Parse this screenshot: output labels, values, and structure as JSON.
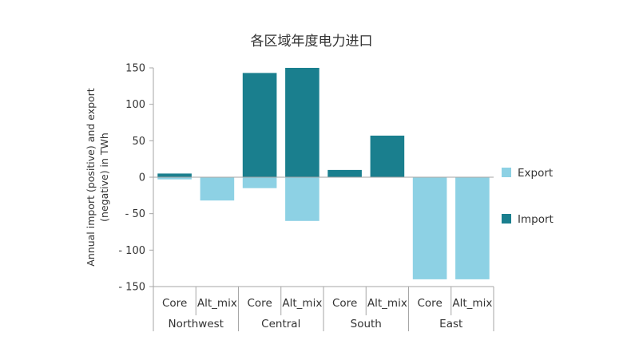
{
  "chart_data": {
    "type": "bar",
    "stacked": true,
    "title": "各区域年度电力进口",
    "ylabel": "Annual import (positive) and export (negative) in TWh",
    "ylabel_lines": [
      "Annual import (positive) and export",
      "(negative) in TWh"
    ],
    "ylim": [
      -150,
      150
    ],
    "yticks": [
      150,
      100,
      50,
      0,
      -50,
      -100,
      -150
    ],
    "ytick_labels": [
      "150",
      "100",
      "50",
      "0",
      "- 50",
      "- 100",
      "- 150"
    ],
    "groups": [
      "Northwest",
      "Central",
      "South",
      "East"
    ],
    "categories": [
      "Core",
      "Alt_mix",
      "Core",
      "Alt_mix",
      "Core",
      "Alt_mix",
      "Core",
      "Alt_mix"
    ],
    "series": [
      {
        "name": "Export",
        "values": [
          -3,
          -32,
          -15,
          -60,
          0,
          0,
          -140,
          -140
        ]
      },
      {
        "name": "Import",
        "values": [
          5,
          0,
          143,
          150,
          10,
          57,
          0,
          0
        ]
      }
    ],
    "legend_position": "right",
    "grid": false,
    "colors": {
      "Export": "#8dd1e4",
      "Import": "#1a7f8e"
    }
  }
}
